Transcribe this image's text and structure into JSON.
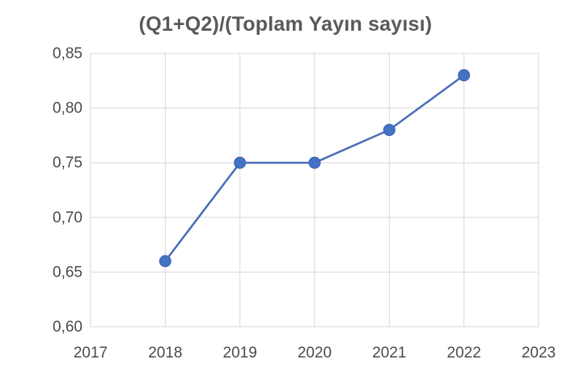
{
  "chart_data": {
    "type": "line",
    "title": "(Q1+Q2)/(Toplam Yayın sayısı)",
    "xlabel": "",
    "ylabel": "",
    "x_ticks": [
      "2017",
      "2018",
      "2019",
      "2020",
      "2021",
      "2022",
      "2023"
    ],
    "xlim": [
      2017,
      2023
    ],
    "y_ticks": [
      "0,60",
      "0,65",
      "0,70",
      "0,75",
      "0,80",
      "0,85"
    ],
    "ylim": [
      0.6,
      0.85
    ],
    "grid": true,
    "series": [
      {
        "x": [
          2018,
          2019,
          2020,
          2021,
          2022
        ],
        "values": [
          0.66,
          0.75,
          0.75,
          0.78,
          0.83
        ]
      }
    ],
    "colors": {
      "line": "#4a6eb8",
      "marker": "#4472c4",
      "grid": "#d9d9d9",
      "title": "#595959",
      "ticks": "#4a4a4a"
    }
  }
}
